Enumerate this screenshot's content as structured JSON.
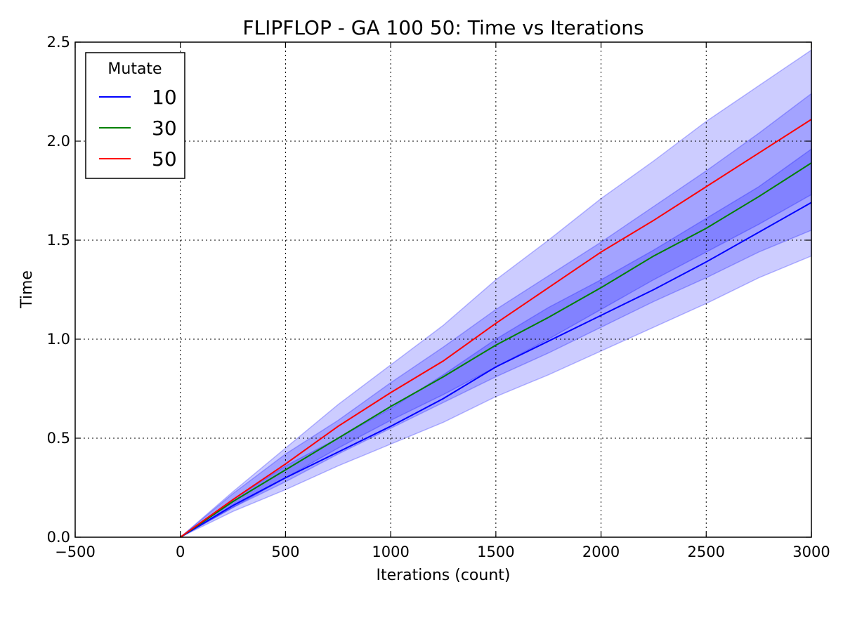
{
  "chart_data": {
    "type": "line",
    "title": "FLIPFLOP - GA 100 50: Time vs Iterations",
    "xlabel": "Iterations (count)",
    "ylabel": "Time",
    "xlim": [
      -500,
      3000
    ],
    "ylim": [
      0.0,
      2.5
    ],
    "x_ticks": [
      -500,
      0,
      500,
      1000,
      1500,
      2000,
      2500,
      3000
    ],
    "x_tick_labels": [
      "−500",
      "0",
      "500",
      "1000",
      "1500",
      "2000",
      "2500",
      "3000"
    ],
    "y_ticks": [
      0.0,
      0.5,
      1.0,
      1.5,
      2.0,
      2.5
    ],
    "y_tick_labels": [
      "0.0",
      "0.5",
      "1.0",
      "1.5",
      "2.0",
      "2.5"
    ],
    "grid": true,
    "legend": {
      "title": "Mutate",
      "position": "top-left"
    },
    "x": [
      0,
      250,
      500,
      750,
      1000,
      1250,
      1500,
      1750,
      2000,
      2250,
      2500,
      2750,
      3000
    ],
    "series": [
      {
        "name": "10",
        "color": "#0000ff",
        "values": [
          0.0,
          0.16,
          0.3,
          0.43,
          0.56,
          0.7,
          0.86,
          0.99,
          1.12,
          1.25,
          1.39,
          1.54,
          1.69
        ],
        "band_lower": [
          0.0,
          0.13,
          0.24,
          0.36,
          0.47,
          0.58,
          0.71,
          0.82,
          0.94,
          1.06,
          1.18,
          1.31,
          1.42
        ],
        "band_upper": [
          0.0,
          0.19,
          0.36,
          0.5,
          0.65,
          0.82,
          1.0,
          1.16,
          1.3,
          1.45,
          1.61,
          1.77,
          1.96
        ]
      },
      {
        "name": "30",
        "color": "#008000",
        "values": [
          0.0,
          0.18,
          0.34,
          0.5,
          0.66,
          0.81,
          0.97,
          1.11,
          1.26,
          1.42,
          1.56,
          1.72,
          1.89
        ],
        "band_lower": [
          0.0,
          0.15,
          0.28,
          0.42,
          0.55,
          0.68,
          0.81,
          0.93,
          1.06,
          1.19,
          1.31,
          1.44,
          1.55
        ],
        "band_upper": [
          0.0,
          0.22,
          0.42,
          0.59,
          0.78,
          0.96,
          1.15,
          1.32,
          1.49,
          1.67,
          1.85,
          2.04,
          2.24
        ]
      },
      {
        "name": "50",
        "color": "#ff0000",
        "values": [
          0.0,
          0.19,
          0.37,
          0.56,
          0.73,
          0.89,
          1.08,
          1.26,
          1.44,
          1.6,
          1.77,
          1.94,
          2.11
        ],
        "band_lower": [
          0.0,
          0.15,
          0.3,
          0.45,
          0.59,
          0.72,
          0.86,
          1.0,
          1.15,
          1.3,
          1.44,
          1.58,
          1.73
        ],
        "band_upper": [
          0.0,
          0.23,
          0.45,
          0.67,
          0.87,
          1.07,
          1.3,
          1.5,
          1.71,
          1.9,
          2.1,
          2.28,
          2.46
        ]
      }
    ],
    "band_color": "#0000ff",
    "band_opacity": 0.2
  }
}
